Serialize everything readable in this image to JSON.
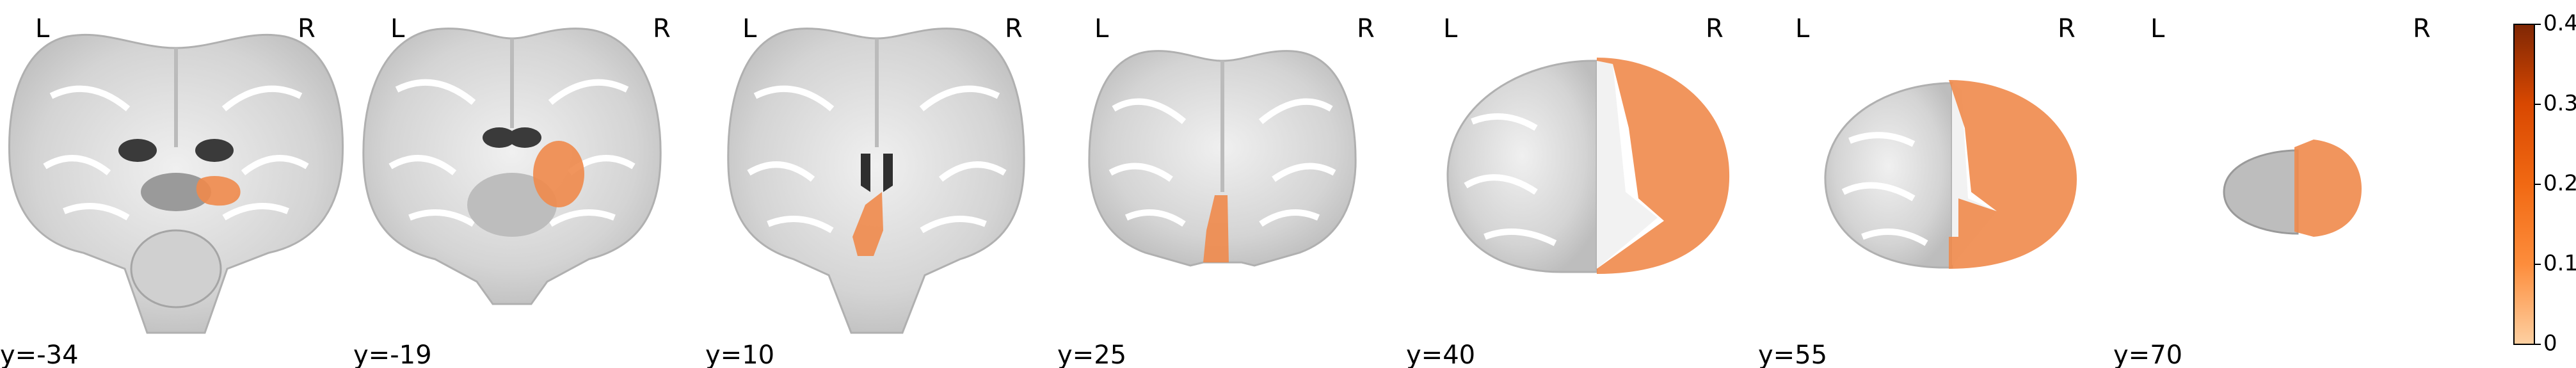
{
  "orientation": {
    "left": "L",
    "right": "R"
  },
  "slices": [
    {
      "coord_label": "y=-34",
      "y": -34
    },
    {
      "coord_label": "y=-19",
      "y": -19
    },
    {
      "coord_label": "y=10",
      "y": 10
    },
    {
      "coord_label": "y=25",
      "y": 25
    },
    {
      "coord_label": "y=40",
      "y": 40
    },
    {
      "coord_label": "y=55",
      "y": 55
    },
    {
      "coord_label": "y=70",
      "y": 70
    }
  ],
  "colorbar": {
    "min": 0,
    "max": 0.4,
    "ticks": [
      "0",
      "0.1",
      "0.2",
      "0.3",
      "0.4"
    ],
    "colors": {
      "low": "#fdd0a2",
      "mid": "#f16913",
      "high": "#7f2704"
    }
  },
  "colors": {
    "overlay": "#f08a4b",
    "brain_light": "#e2e2e2",
    "brain_dark": "#8a8a8a"
  }
}
